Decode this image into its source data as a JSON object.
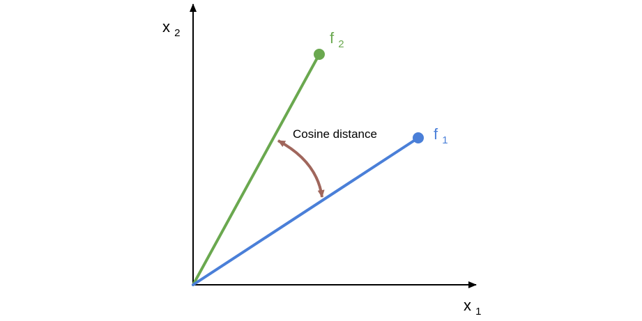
{
  "axes": {
    "x": {
      "base": "x",
      "subscript": "1"
    },
    "y": {
      "base": "x",
      "subscript": "2"
    },
    "color": "#000000"
  },
  "vectors": [
    {
      "id": "f1",
      "base": "f",
      "subscript": "1",
      "color": "#4a7fd8"
    },
    {
      "id": "f2",
      "base": "f",
      "subscript": "2",
      "color": "#6aa84f"
    }
  ],
  "angle": {
    "label": "Cosine distance",
    "color": "#a0665c"
  }
}
